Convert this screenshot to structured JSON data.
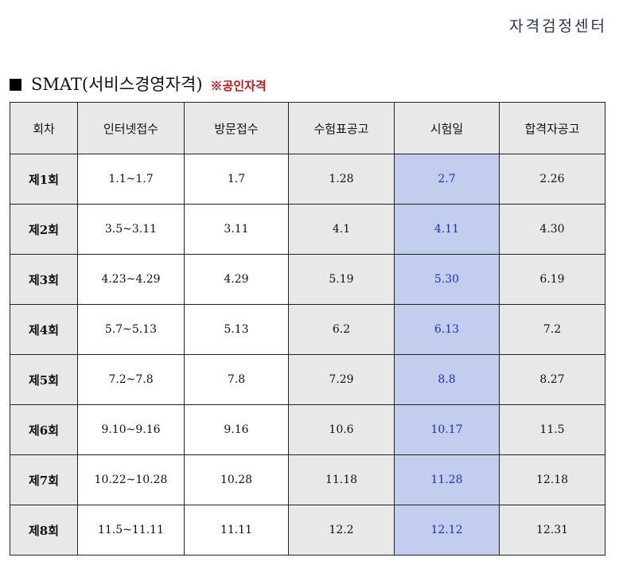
{
  "brand": "자격검정센터",
  "heading": {
    "title": "SMAT(서비스경영자격)",
    "note": "※공인자격"
  },
  "colors": {
    "exam_bg": "#c3cdee",
    "exam_text": "#1f2fc2",
    "note_red": "#d01010",
    "header_bg": "#e8e8e8"
  },
  "table": {
    "headers": [
      "회차",
      "인터넷접수",
      "방문접수",
      "수험표공고",
      "시험일",
      "합격자공고"
    ],
    "rows": [
      {
        "round": "제1회",
        "internet": "1.1~1.7",
        "visit": "1.7",
        "ticket": "1.28",
        "exam": "2.7",
        "result": "2.26"
      },
      {
        "round": "제2회",
        "internet": "3.5~3.11",
        "visit": "3.11",
        "ticket": "4.1",
        "exam": "4.11",
        "result": "4.30"
      },
      {
        "round": "제3회",
        "internet": "4.23~4.29",
        "visit": "4.29",
        "ticket": "5.19",
        "exam": "5.30",
        "result": "6.19"
      },
      {
        "round": "제4회",
        "internet": "5.7~5.13",
        "visit": "5.13",
        "ticket": "6.2",
        "exam": "6.13",
        "result": "7.2"
      },
      {
        "round": "제5회",
        "internet": "7.2~7.8",
        "visit": "7.8",
        "ticket": "7.29",
        "exam": "8.8",
        "result": "8.27"
      },
      {
        "round": "제6회",
        "internet": "9.10~9.16",
        "visit": "9.16",
        "ticket": "10.6",
        "exam": "10.17",
        "result": "11.5"
      },
      {
        "round": "제7회",
        "internet": "10.22~10.28",
        "visit": "10.28",
        "ticket": "11.18",
        "exam": "11.28",
        "result": "12.18"
      },
      {
        "round": "제8회",
        "internet": "11.5~11.11",
        "visit": "11.11",
        "ticket": "12.2",
        "exam": "12.12",
        "result": "12.31"
      }
    ]
  }
}
